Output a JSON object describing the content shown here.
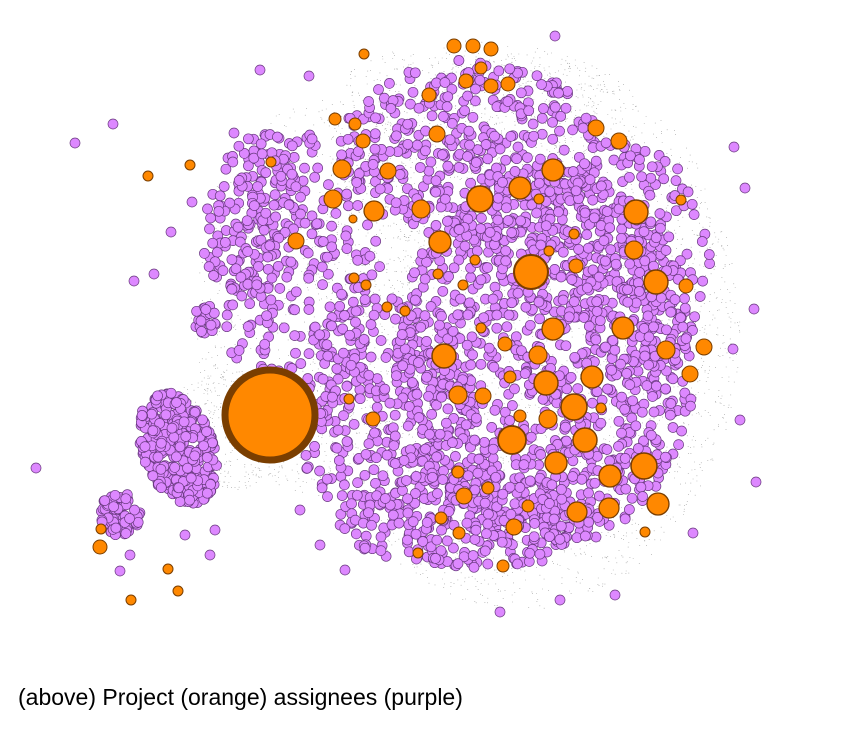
{
  "caption": "(above) Project (orange) assignees (purple)",
  "colors": {
    "project_fill": "#ff8800",
    "project_stroke": "#7a3e00",
    "assignee_fill": "#dd88ff",
    "assignee_stroke": "#6a3a80",
    "edge": "#000000",
    "background": "#ffffff"
  },
  "legend": {
    "project_color_word": "orange",
    "assignee_color_word": "purple"
  }
}
